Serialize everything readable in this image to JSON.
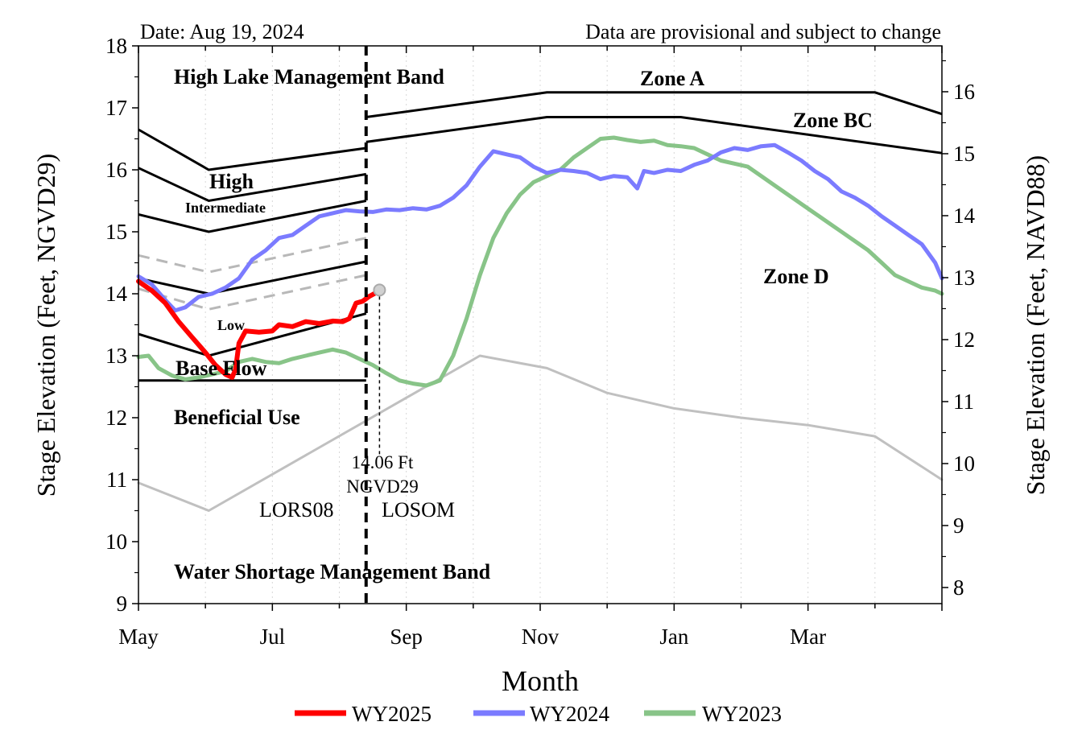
{
  "chart_data": {
    "type": "line",
    "date_label": "Date: Aug 19, 2024",
    "disclaimer": "Data are provisional and subject to change",
    "xlabel": "Month",
    "ylabel_left": "Stage Elevation (Feet, NGVD29)",
    "ylabel_right": "Stage Elevation (Feet, NAVD88)",
    "x_ticks": [
      "May",
      "Jul",
      "Sep",
      "Nov",
      "Jan",
      "Mar"
    ],
    "x_unit": "month index from May 1 (0 = May 1, 12 = next May 1)",
    "xlim": [
      0,
      12
    ],
    "ylim_left": [
      9,
      18
    ],
    "ylim_right_ticks": [
      8,
      9,
      10,
      11,
      12,
      13,
      14,
      15,
      16
    ],
    "right_axis_offset": -1.26,
    "grid": false,
    "legend_position": "bottom",
    "colors": {
      "WY2025": "#ff0000",
      "WY2024": "#7b7bff",
      "WY2023": "#88c488",
      "gray": "#c0c0c0",
      "disclaimer": "#ff0000",
      "lors08": "#e8a0b0",
      "losom": "#9932cc"
    },
    "zone_labels": {
      "high_lake": "High Lake Management Band",
      "zone_a": "Zone A",
      "zone_bc": "Zone BC",
      "zone_d": "Zone D",
      "high": "High",
      "intermediate": "Intermediate",
      "low": "Low",
      "base_flow": "Base Flow",
      "beneficial_use": "Beneficial Use",
      "water_shortage": "Water Shortage Management Band",
      "lors08": "LORS08",
      "losom": "LOSOM"
    },
    "current": {
      "value_line1": "14.06 Ft",
      "value_line2": "NGVD29",
      "x": 3.6,
      "y": 14.06
    },
    "divider_x": 3.4,
    "boundary_lines": [
      {
        "name": "lors-high",
        "x": [
          0,
          1.05,
          3.4
        ],
        "y": [
          16.65,
          16.0,
          16.35
        ]
      },
      {
        "name": "lors-intermediate",
        "x": [
          0,
          1.05,
          3.4
        ],
        "y": [
          16.03,
          15.5,
          15.93
        ]
      },
      {
        "name": "lors-low",
        "x": [
          0,
          1.05,
          3.4
        ],
        "y": [
          15.28,
          15.0,
          15.5
        ]
      },
      {
        "name": "lors-base-top",
        "x": [
          0,
          1.05,
          3.4
        ],
        "y": [
          14.25,
          14.0,
          14.52
        ]
      },
      {
        "name": "lors-base-bottom",
        "x": [
          0,
          1.05,
          3.4
        ],
        "y": [
          13.35,
          13.0,
          13.68
        ]
      },
      {
        "name": "lors-beneficial",
        "x": [
          0,
          3.4
        ],
        "y": [
          12.6,
          12.6
        ]
      },
      {
        "name": "losom-zone-a",
        "x": [
          3.4,
          6.1,
          11.0,
          12.0
        ],
        "y": [
          16.85,
          17.25,
          17.25,
          16.9
        ]
      },
      {
        "name": "losom-zone-bc",
        "x": [
          3.4,
          6.1,
          8.1,
          12.0
        ],
        "y": [
          16.45,
          16.85,
          16.85,
          16.27
        ]
      }
    ],
    "dashed_lines": [
      {
        "name": "dash-upper",
        "x": [
          0,
          1.05,
          3.4
        ],
        "y": [
          14.62,
          14.35,
          14.9
        ]
      },
      {
        "name": "dash-lower",
        "x": [
          0,
          1.05,
          3.4
        ],
        "y": [
          14.08,
          13.75,
          14.3
        ]
      }
    ],
    "series": [
      {
        "name": "WY2025",
        "x": [
          0,
          0.2,
          0.4,
          0.6,
          0.8,
          1.0,
          1.15,
          1.3,
          1.4,
          1.45,
          1.5,
          1.6,
          1.8,
          2.0,
          2.1,
          2.3,
          2.5,
          2.7,
          2.9,
          3.05,
          3.15,
          3.25,
          3.35,
          3.45,
          3.52,
          3.6
        ],
        "y": [
          14.2,
          14.05,
          13.85,
          13.55,
          13.3,
          13.05,
          12.85,
          12.7,
          12.65,
          12.78,
          13.2,
          13.4,
          13.38,
          13.4,
          13.5,
          13.47,
          13.55,
          13.52,
          13.56,
          13.55,
          13.6,
          13.85,
          13.88,
          13.96,
          14.0,
          14.06
        ]
      },
      {
        "name": "WY2024",
        "x": [
          0,
          0.2,
          0.4,
          0.55,
          0.7,
          0.9,
          1.1,
          1.3,
          1.5,
          1.7,
          1.9,
          2.1,
          2.3,
          2.5,
          2.7,
          2.9,
          3.1,
          3.3,
          3.5,
          3.7,
          3.9,
          4.1,
          4.3,
          4.5,
          4.7,
          4.9,
          5.1,
          5.3,
          5.5,
          5.7,
          5.9,
          6.1,
          6.3,
          6.5,
          6.7,
          6.9,
          7.1,
          7.3,
          7.45,
          7.55,
          7.7,
          7.9,
          8.1,
          8.3,
          8.5,
          8.7,
          8.9,
          9.1,
          9.3,
          9.5,
          9.7,
          9.9,
          10.1,
          10.3,
          10.5,
          10.7,
          10.9,
          11.1,
          11.3,
          11.5,
          11.7,
          11.9,
          12.0
        ],
        "y": [
          14.28,
          14.15,
          13.9,
          13.73,
          13.78,
          13.95,
          14.0,
          14.1,
          14.25,
          14.55,
          14.7,
          14.9,
          14.95,
          15.1,
          15.25,
          15.3,
          15.35,
          15.33,
          15.32,
          15.36,
          15.35,
          15.38,
          15.36,
          15.42,
          15.55,
          15.75,
          16.05,
          16.3,
          16.25,
          16.2,
          16.05,
          15.95,
          16.0,
          15.98,
          15.95,
          15.85,
          15.9,
          15.88,
          15.7,
          15.98,
          15.95,
          16.0,
          15.98,
          16.08,
          16.15,
          16.28,
          16.35,
          16.32,
          16.38,
          16.4,
          16.28,
          16.15,
          15.98,
          15.85,
          15.65,
          15.55,
          15.42,
          15.25,
          15.1,
          14.95,
          14.8,
          14.5,
          14.25
        ]
      },
      {
        "name": "WY2023",
        "x": [
          0,
          0.15,
          0.3,
          0.5,
          0.7,
          0.9,
          1.1,
          1.3,
          1.5,
          1.7,
          1.9,
          2.1,
          2.3,
          2.5,
          2.7,
          2.9,
          3.1,
          3.3,
          3.5,
          3.7,
          3.9,
          4.1,
          4.3,
          4.5,
          4.7,
          4.9,
          5.1,
          5.3,
          5.5,
          5.7,
          5.9,
          6.1,
          6.3,
          6.5,
          6.7,
          6.9,
          7.1,
          7.3,
          7.5,
          7.7,
          7.9,
          8.1,
          8.3,
          8.5,
          8.7,
          8.9,
          9.1,
          9.3,
          9.5,
          9.7,
          9.9,
          10.1,
          10.3,
          10.5,
          10.7,
          10.9,
          11.1,
          11.3,
          11.5,
          11.7,
          11.9,
          12.0
        ],
        "y": [
          12.98,
          13.0,
          12.8,
          12.68,
          12.62,
          12.65,
          12.7,
          12.75,
          12.9,
          12.95,
          12.9,
          12.88,
          12.95,
          13.0,
          13.05,
          13.1,
          13.05,
          12.95,
          12.85,
          12.72,
          12.6,
          12.55,
          12.52,
          12.6,
          13.0,
          13.6,
          14.3,
          14.9,
          15.3,
          15.6,
          15.8,
          15.9,
          16.0,
          16.2,
          16.35,
          16.5,
          16.52,
          16.48,
          16.45,
          16.47,
          16.4,
          16.38,
          16.35,
          16.25,
          16.15,
          16.1,
          16.05,
          15.9,
          15.75,
          15.6,
          15.45,
          15.3,
          15.15,
          15.0,
          14.85,
          14.7,
          14.5,
          14.3,
          14.2,
          14.1,
          14.05,
          14.0
        ]
      },
      {
        "name": "gray",
        "x": [
          0,
          1.05,
          5.1,
          6.1,
          7.0,
          8.0,
          9.0,
          10.0,
          11.0,
          12.0
        ],
        "y": [
          10.95,
          10.5,
          13.0,
          12.8,
          12.4,
          12.15,
          12.0,
          11.88,
          11.7,
          11.0
        ]
      }
    ]
  }
}
